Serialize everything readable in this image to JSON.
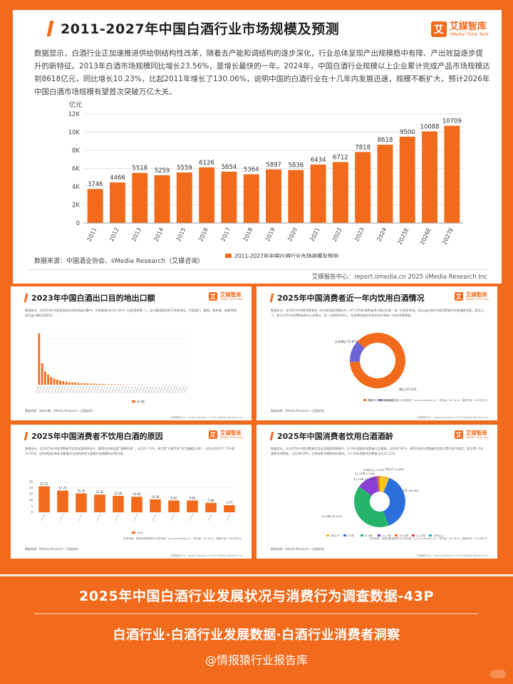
{
  "main": {
    "logo_box": "艾",
    "logo_cn": "艾媒智库",
    "logo_en": "iiMedia Think Tank",
    "title": "2011-2027年中国白酒行业市场规模及预测",
    "description": "数据显示，白酒行业正加速推进供给侧结构性改革，随着去产能和调结构的逐步深化，行业总体呈现产出规模稳中有降、产出效益逐步提升的新特征。2013年白酒市场规模同比增长23.56%，是增长最快的一年。2024年，中国白酒行业规模以上企业累计完成产品市场规模达到8618亿元，同比增长10.23%，比起2011年增长了130.06%，说明中国的白酒行业在十几年内发展迅速，规模不断扩大，预计2026年中国白酒市场规模有望首次突破万亿大关。",
    "source": "数据来源：中国酒业协会、iiMedia Research（艾媒咨询）",
    "report": "艾媒报告中心：report.iimedia.cn   2025 iiMedia Research Inc",
    "colors": {
      "accent": "#f26a1b",
      "bar": "#f26a1b"
    }
  },
  "chart_data": [
    {
      "type": "bar",
      "title": "2011-2027年中国白酒行业市场规模及预测",
      "ylabel": "亿元",
      "legend": "2011-2027年中国白酒行业市场规模及预测",
      "legend_position": "bottom",
      "categories": [
        "2011",
        "2012",
        "2013",
        "2014",
        "2015",
        "2016",
        "2017",
        "2018",
        "2019",
        "2020",
        "2021",
        "2022",
        "2023",
        "2024",
        "2025E",
        "2026E",
        "2027E"
      ],
      "values": [
        3746,
        4466,
        5518,
        5259,
        5559,
        6126,
        5654,
        5364,
        5897,
        5836,
        6434,
        6712,
        7818,
        8618,
        9500,
        10088,
        10709
      ],
      "yticks": [
        "0",
        "2K",
        "4K",
        "6K",
        "8K",
        "10K",
        "12K"
      ],
      "ylim": [
        0,
        12000
      ],
      "grid": true
    },
    {
      "type": "bar",
      "title": "2023年中国白酒出口目的地出口额",
      "legend": "出口额",
      "values": [
        100,
        42,
        26,
        20,
        15,
        12,
        10,
        8,
        7,
        6,
        5,
        4.5,
        4,
        3.5,
        3,
        2.8,
        2.5,
        2.2,
        2,
        1.8,
        1.6,
        1.4,
        1.2,
        1,
        0.9,
        0.8,
        0.7,
        0.6,
        0.5,
        0.45,
        0.4,
        0.35,
        0.3,
        0.28,
        0.25,
        0.22,
        0.2,
        0.18,
        0.16,
        0.14,
        0.12,
        0.1,
        0.09,
        0.08,
        0.07,
        0.06,
        0.05,
        0.04,
        0.03,
        0.02
      ]
    },
    {
      "type": "pie",
      "title": "2025年中国消费者近一年内饮用白酒情况",
      "slices": [
        {
          "label": "喝过",
          "value": 87.13,
          "color": "#f26a1b"
        },
        {
          "label": "从未喝过",
          "value": 12.87,
          "color": "#6b63d6"
        }
      ],
      "labels_shown": [
        "从未喝过 12.87%",
        "喝过 87.13%"
      ],
      "legend": [
        "喝过",
        "从未喝过"
      ]
    },
    {
      "type": "bar",
      "title": "2025年中国消费者不饮用白酒的原因",
      "values": [
        21.15,
        17.72,
        15.35,
        14.42,
        13.46,
        12.66,
        10.58,
        9.62,
        9.62,
        7.69,
        5.77
      ],
      "yticks": [
        "0",
        "5",
        "10",
        "15",
        "20",
        "25"
      ],
      "ylim": [
        0,
        25
      ],
      "legend": "2025"
    },
    {
      "type": "pie",
      "title": "2025年中国消费者饮用白酒酒龄",
      "slices": [
        {
          "label": "1年以下",
          "value": 6.09,
          "color": "#f7c325"
        },
        {
          "label": "1-5年",
          "value": 38.09,
          "color": "#2b6fdc"
        },
        {
          "label": "6-10年",
          "value": 40.91,
          "color": "#27b46a"
        },
        {
          "label": "11-15年",
          "value": 13.21,
          "color": "#8a3fd6"
        },
        {
          "label": "16-20年",
          "value": 1.3,
          "color": "#f26a1b"
        },
        {
          "label": "21-25年",
          "value": 0.2,
          "color": "#d64040"
        },
        {
          "label": "25年以上",
          "value": 0.2,
          "color": "#22b5c9"
        }
      ],
      "labels_shown": [
        "1年以下 6.09%",
        "1-5年 38.09%",
        "6-10年 40.91%",
        "11-15年 13.21%",
        "21-25年 0.20%",
        "25年以上 0.20%"
      ],
      "legend": [
        "1年以下",
        "1-5年",
        "6-10年",
        "11-15年",
        "16-20年",
        "21-25年",
        "25年以上"
      ]
    }
  ],
  "cards": {
    "c1_title": "2023年中国白酒出口目的地出口额",
    "c2_title": "2025年中国消费者近一年内饮用白酒情况",
    "c3_title": "2025年中国消费者不饮用白酒的原因",
    "c4_title": "2025年中国消费者饮用白酒酒龄",
    "c1_desc": "数据显示，在2023年中国白酒出口目的地出口额中，中国香港以约43.82%（位居世界第一），出口额遥遥领先于其他地区。中国澳门、美国、新加坡、韩国等地区的出口额位居前列。",
    "c2_desc": "数据显示，在2025年中国消费者近一年内饮用白酒情况中，87.13%的消费者表示喝过白酒，这一比例非常高，显示出白酒在中国消费者中的普遍接受度。相比之下，有12.87%的消费者表示从未喝过，这一比例相对较小，也说明白酒在饮料市场中具有一定的消费基础。",
    "c3_desc": "数据显示，在2025年中国消费者不饮用白酒的原因中，最常见的原因是“健康考虑”，占比21.15%，其次是“口感不适”和“酒精度太高”，占比分别为17.72%和15.35%。这些原因反映出消费者对白酒的顾虑主要集中在健康和口感方面。",
    "c4_desc": "数据显示，在2025年中国消费者饮用白酒酒龄的数据中，6-10年酒龄的消费者占比最高，达到40.91%，表明大部分消费者的饮酒习惯已较为稳定；其次是1-5年酒龄的消费者，占比38.09%，反映出新消费群体的增长。11-15年酒龄的消费者占比13.21%。",
    "src": "数据来源：iiMedia Research（艾媒咨询）",
    "c1_src": "数据来源：海关总署、iiMedia Research（艾媒咨询）",
    "report_small": "艾媒报告中心：report.iimedia.cn   2025 iiMedia Research Inc",
    "note_small": "样本来源：草莓派数据调查与计算系统（survey.iimedia.cn）\n样本量：N=1614；调研时间：2025年4月"
  },
  "bottom": {
    "title": "2025年中国白酒行业发展状况与消费行为调查数据-43P",
    "subtitle": "白酒行业·白酒行业发展数据·白酒行业消费者洞察",
    "handle": "@情报猿行业报告库"
  }
}
